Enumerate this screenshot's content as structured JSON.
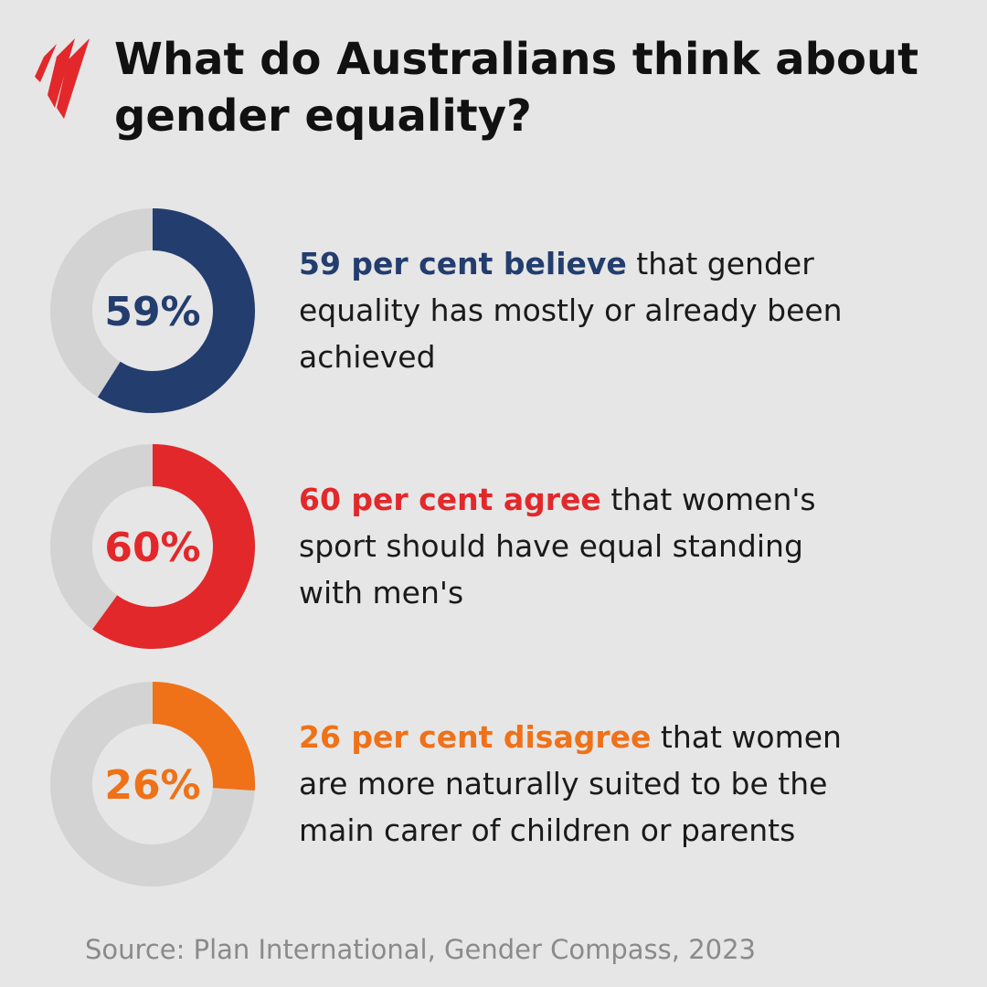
{
  "title": "What do Australians think about gender equality?",
  "source": "Source: Plan International, Gender Compass, 2023",
  "chart_data": [
    {
      "type": "donut",
      "values": [
        59
      ],
      "value_labels": [
        "59%"
      ],
      "color": "#233d6e",
      "highlight": "59 per cent believe",
      "text": "that gender equality has mostly or already been achieved"
    },
    {
      "type": "donut",
      "values": [
        60
      ],
      "value_labels": [
        "60%"
      ],
      "color": "#e2282b",
      "highlight": "60 per cent agree",
      "text": "that women's sport should have equal standing with men's"
    },
    {
      "type": "donut",
      "values": [
        26
      ],
      "value_labels": [
        "26%"
      ],
      "color": "#ef7118",
      "highlight": "26 per cent disagree",
      "text": "that women are more naturally suited to be the main carer of children or parents"
    }
  ]
}
